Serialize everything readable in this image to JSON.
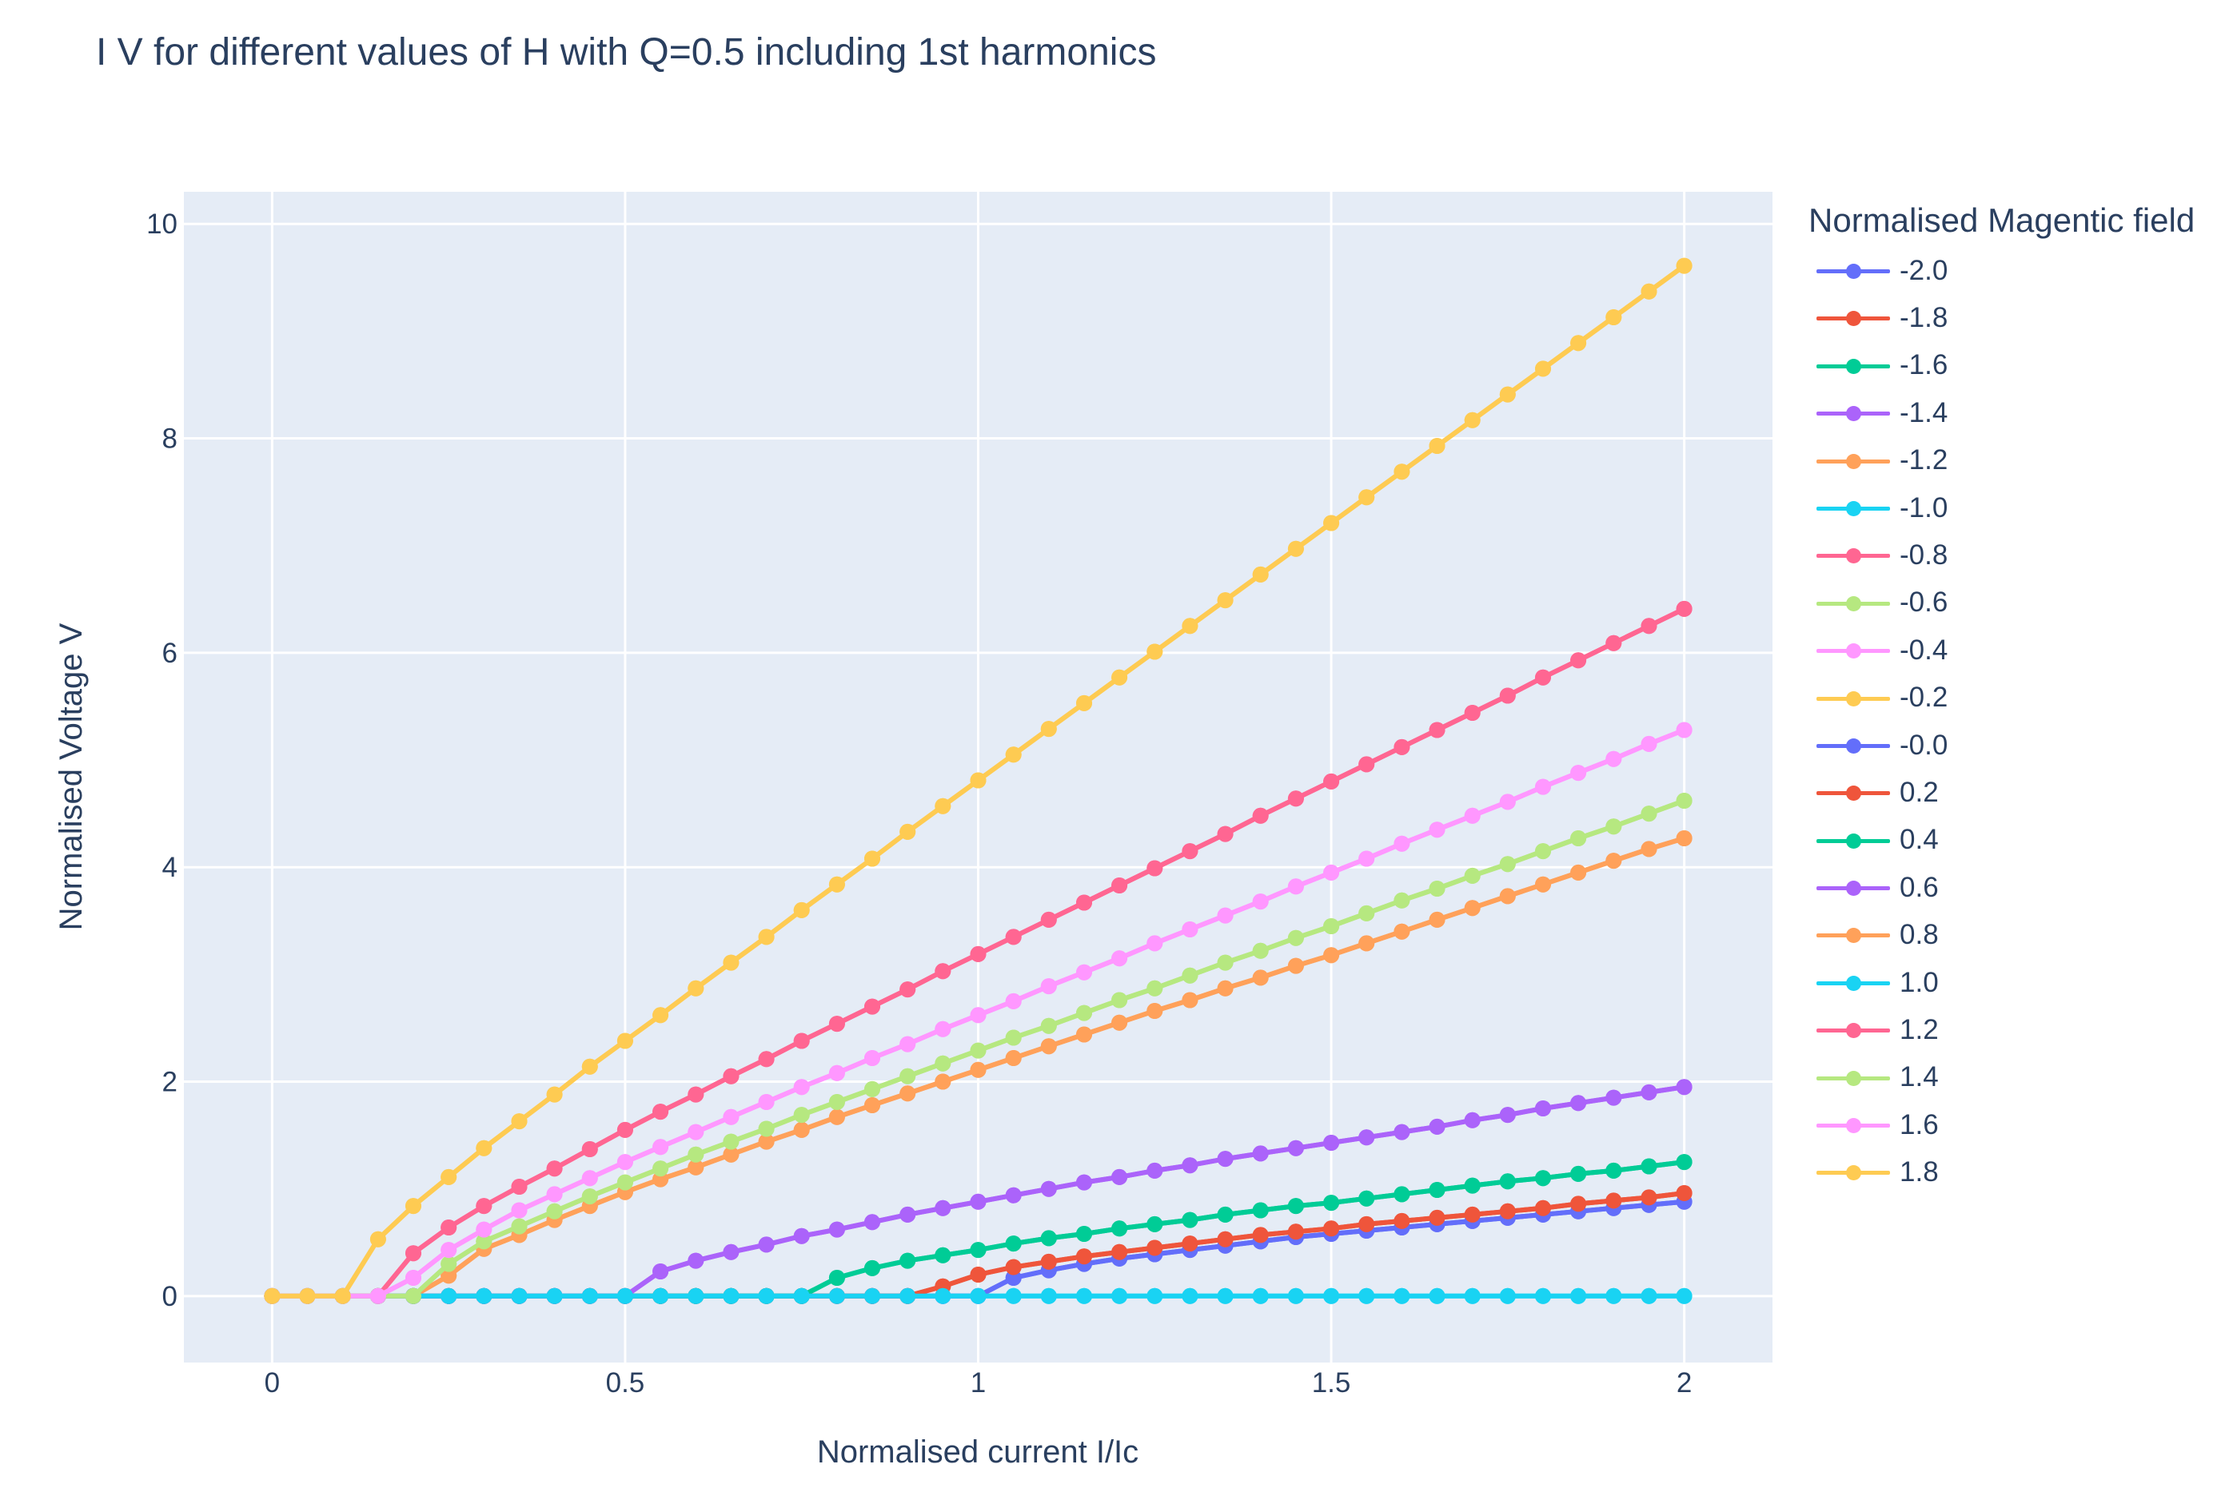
{
  "title": "I V for different values of H with Q=0.5 including 1st harmonics",
  "legend_title": "Normalised Magentic field",
  "chart_data": {
    "type": "line",
    "title": "I V for different values of H with Q=0.5 including 1st harmonics",
    "xlabel": "Normalised current I/Ic",
    "ylabel": "Normalised Voltage V",
    "xlim": [
      -0.125,
      2.125
    ],
    "ylim": [
      -0.62,
      10.3
    ],
    "xticks": [
      0,
      0.5,
      1,
      1.5,
      2
    ],
    "xtick_labels": [
      "0",
      "0.5",
      "1",
      "1.5",
      "2"
    ],
    "yticks": [
      0,
      2,
      4,
      6,
      8,
      10
    ],
    "ytick_labels": [
      "0",
      "2",
      "4",
      "6",
      "8",
      "10"
    ],
    "grid": true,
    "legend_position": "right",
    "x": [
      0,
      0.05,
      0.1,
      0.15,
      0.2,
      0.25,
      0.3,
      0.35,
      0.4,
      0.45,
      0.5,
      0.55,
      0.6,
      0.65,
      0.7,
      0.75,
      0.8,
      0.85,
      0.9,
      0.95,
      1,
      1.05,
      1.1,
      1.15,
      1.2,
      1.25,
      1.3,
      1.35,
      1.4,
      1.45,
      1.5,
      1.55,
      1.6,
      1.65,
      1.7,
      1.75,
      1.8,
      1.85,
      1.9,
      1.95,
      2
    ],
    "series": [
      {
        "name": "-2.0",
        "color": "#636efa",
        "values": [
          0,
          0,
          0,
          0,
          0,
          0,
          0,
          0,
          0,
          0,
          0,
          0,
          0,
          0,
          0,
          0,
          0,
          0,
          0,
          0,
          0,
          0.17,
          0.24,
          0.3,
          0.35,
          0.39,
          0.43,
          0.47,
          0.51,
          0.55,
          0.58,
          0.61,
          0.64,
          0.67,
          0.7,
          0.73,
          0.76,
          0.79,
          0.82,
          0.85,
          0.88
        ]
      },
      {
        "name": "-1.8",
        "color": "#ef553b",
        "values": [
          0,
          0,
          0,
          0,
          0,
          0,
          0,
          0,
          0,
          0,
          0,
          0,
          0,
          0,
          0,
          0,
          0,
          0,
          0,
          0.09,
          0.2,
          0.27,
          0.32,
          0.37,
          0.41,
          0.45,
          0.49,
          0.53,
          0.57,
          0.6,
          0.63,
          0.67,
          0.7,
          0.73,
          0.76,
          0.79,
          0.82,
          0.86,
          0.89,
          0.92,
          0.96
        ]
      },
      {
        "name": "-1.6",
        "color": "#00cc96",
        "values": [
          0,
          0,
          0,
          0,
          0,
          0,
          0,
          0,
          0,
          0,
          0,
          0,
          0,
          0,
          0,
          0,
          0.17,
          0.26,
          0.33,
          0.38,
          0.43,
          0.49,
          0.54,
          0.58,
          0.63,
          0.67,
          0.71,
          0.76,
          0.8,
          0.84,
          0.87,
          0.91,
          0.95,
          0.99,
          1.03,
          1.07,
          1.1,
          1.14,
          1.17,
          1.21,
          1.25
        ]
      },
      {
        "name": "-1.4",
        "color": "#ab63fa",
        "values": [
          0,
          0,
          0,
          0,
          0,
          0,
          0,
          0,
          0,
          0,
          0,
          0.23,
          0.33,
          0.41,
          0.48,
          0.56,
          0.62,
          0.69,
          0.76,
          0.82,
          0.88,
          0.94,
          1.0,
          1.06,
          1.11,
          1.17,
          1.22,
          1.28,
          1.33,
          1.38,
          1.43,
          1.48,
          1.53,
          1.58,
          1.64,
          1.69,
          1.75,
          1.8,
          1.85,
          1.9,
          1.95
        ]
      },
      {
        "name": "-1.2",
        "color": "#ffa15a",
        "values": [
          0,
          0,
          0,
          0,
          0,
          0.19,
          0.44,
          0.57,
          0.71,
          0.84,
          0.97,
          1.09,
          1.2,
          1.32,
          1.44,
          1.55,
          1.67,
          1.78,
          1.89,
          2.0,
          2.11,
          2.22,
          2.33,
          2.44,
          2.55,
          2.66,
          2.76,
          2.87,
          2.97,
          3.08,
          3.18,
          3.29,
          3.4,
          3.51,
          3.62,
          3.73,
          3.84,
          3.95,
          4.06,
          4.17,
          4.27
        ]
      },
      {
        "name": "-1.0",
        "color": "#19d3f3",
        "values": [
          0,
          0,
          0,
          0,
          0,
          0,
          0,
          0,
          0,
          0,
          0,
          0,
          0,
          0,
          0,
          0,
          0,
          0,
          0,
          0,
          0,
          0,
          0,
          0,
          0,
          0,
          0,
          0,
          0,
          0,
          0,
          0,
          0,
          0,
          0,
          0,
          0,
          0,
          0,
          0,
          0
        ]
      },
      {
        "name": "-0.8",
        "color": "#ff6692",
        "values": [
          0,
          0,
          0,
          0,
          0.4,
          0.64,
          0.84,
          1.02,
          1.19,
          1.37,
          1.55,
          1.72,
          1.88,
          2.05,
          2.21,
          2.38,
          2.54,
          2.7,
          2.86,
          3.03,
          3.19,
          3.35,
          3.51,
          3.67,
          3.83,
          3.99,
          4.15,
          4.31,
          4.48,
          4.64,
          4.8,
          4.96,
          5.12,
          5.28,
          5.44,
          5.6,
          5.77,
          5.93,
          6.09,
          6.25,
          6.41
        ]
      },
      {
        "name": "-0.6",
        "color": "#b6e880",
        "values": [
          0,
          0,
          0,
          0,
          0,
          0.3,
          0.51,
          0.65,
          0.79,
          0.93,
          1.06,
          1.19,
          1.32,
          1.44,
          1.56,
          1.69,
          1.81,
          1.93,
          2.05,
          2.17,
          2.29,
          2.41,
          2.52,
          2.64,
          2.76,
          2.87,
          2.99,
          3.11,
          3.22,
          3.34,
          3.45,
          3.57,
          3.69,
          3.8,
          3.92,
          4.03,
          4.15,
          4.27,
          4.38,
          4.5,
          4.62
        ]
      },
      {
        "name": "-0.4",
        "color": "#ff97ff",
        "values": [
          0,
          0,
          0,
          0,
          0.17,
          0.43,
          0.62,
          0.8,
          0.95,
          1.1,
          1.25,
          1.39,
          1.53,
          1.67,
          1.81,
          1.95,
          2.08,
          2.22,
          2.35,
          2.49,
          2.62,
          2.75,
          2.89,
          3.02,
          3.15,
          3.29,
          3.42,
          3.55,
          3.68,
          3.82,
          3.95,
          4.08,
          4.22,
          4.35,
          4.48,
          4.61,
          4.75,
          4.88,
          5.01,
          5.15,
          5.28
        ]
      },
      {
        "name": "-0.2",
        "color": "#fecb52",
        "values": [
          0,
          0,
          0,
          0.53,
          0.84,
          1.11,
          1.38,
          1.63,
          1.88,
          2.14,
          2.38,
          2.62,
          2.87,
          3.11,
          3.35,
          3.6,
          3.84,
          4.08,
          4.33,
          4.57,
          4.81,
          5.05,
          5.29,
          5.53,
          5.77,
          6.01,
          6.25,
          6.49,
          6.73,
          6.97,
          7.21,
          7.45,
          7.69,
          7.93,
          8.17,
          8.41,
          8.65,
          8.89,
          9.13,
          9.37,
          9.61
        ]
      },
      {
        "name": "-0.0",
        "color": "#636efa",
        "values": [
          0,
          0,
          0,
          0,
          0,
          0,
          0,
          0,
          0,
          0,
          0,
          0,
          0,
          0,
          0,
          0,
          0,
          0,
          0,
          0,
          0,
          0.17,
          0.24,
          0.3,
          0.35,
          0.39,
          0.43,
          0.47,
          0.51,
          0.55,
          0.58,
          0.61,
          0.64,
          0.67,
          0.7,
          0.73,
          0.76,
          0.79,
          0.82,
          0.85,
          0.88
        ]
      },
      {
        "name": "0.2",
        "color": "#ef553b",
        "values": [
          0,
          0,
          0,
          0,
          0,
          0,
          0,
          0,
          0,
          0,
          0,
          0,
          0,
          0,
          0,
          0,
          0,
          0,
          0,
          0.09,
          0.2,
          0.27,
          0.32,
          0.37,
          0.41,
          0.45,
          0.49,
          0.53,
          0.57,
          0.6,
          0.63,
          0.67,
          0.7,
          0.73,
          0.76,
          0.79,
          0.82,
          0.86,
          0.89,
          0.92,
          0.96
        ]
      },
      {
        "name": "0.4",
        "color": "#00cc96",
        "values": [
          0,
          0,
          0,
          0,
          0,
          0,
          0,
          0,
          0,
          0,
          0,
          0,
          0,
          0,
          0,
          0,
          0.17,
          0.26,
          0.33,
          0.38,
          0.43,
          0.49,
          0.54,
          0.58,
          0.63,
          0.67,
          0.71,
          0.76,
          0.8,
          0.84,
          0.87,
          0.91,
          0.95,
          0.99,
          1.03,
          1.07,
          1.1,
          1.14,
          1.17,
          1.21,
          1.25
        ]
      },
      {
        "name": "0.6",
        "color": "#ab63fa",
        "values": [
          0,
          0,
          0,
          0,
          0,
          0,
          0,
          0,
          0,
          0,
          0,
          0.23,
          0.33,
          0.41,
          0.48,
          0.56,
          0.62,
          0.69,
          0.76,
          0.82,
          0.88,
          0.94,
          1.0,
          1.06,
          1.11,
          1.17,
          1.22,
          1.28,
          1.33,
          1.38,
          1.43,
          1.48,
          1.53,
          1.58,
          1.64,
          1.69,
          1.75,
          1.8,
          1.85,
          1.9,
          1.95
        ]
      },
      {
        "name": "0.8",
        "color": "#ffa15a",
        "values": [
          0,
          0,
          0,
          0,
          0,
          0.19,
          0.44,
          0.57,
          0.71,
          0.84,
          0.97,
          1.09,
          1.2,
          1.32,
          1.44,
          1.55,
          1.67,
          1.78,
          1.89,
          2.0,
          2.11,
          2.22,
          2.33,
          2.44,
          2.55,
          2.66,
          2.76,
          2.87,
          2.97,
          3.08,
          3.18,
          3.29,
          3.4,
          3.51,
          3.62,
          3.73,
          3.84,
          3.95,
          4.06,
          4.17,
          4.27
        ]
      },
      {
        "name": "1.0",
        "color": "#19d3f3",
        "values": [
          0,
          0,
          0,
          0,
          0,
          0,
          0,
          0,
          0,
          0,
          0,
          0,
          0,
          0,
          0,
          0,
          0,
          0,
          0,
          0,
          0,
          0,
          0,
          0,
          0,
          0,
          0,
          0,
          0,
          0,
          0,
          0,
          0,
          0,
          0,
          0,
          0,
          0,
          0,
          0,
          0
        ]
      },
      {
        "name": "1.2",
        "color": "#ff6692",
        "values": [
          0,
          0,
          0,
          0,
          0.4,
          0.64,
          0.84,
          1.02,
          1.19,
          1.37,
          1.55,
          1.72,
          1.88,
          2.05,
          2.21,
          2.38,
          2.54,
          2.7,
          2.86,
          3.03,
          3.19,
          3.35,
          3.51,
          3.67,
          3.83,
          3.99,
          4.15,
          4.31,
          4.48,
          4.64,
          4.8,
          4.96,
          5.12,
          5.28,
          5.44,
          5.6,
          5.77,
          5.93,
          6.09,
          6.25,
          6.41
        ]
      },
      {
        "name": "1.4",
        "color": "#b6e880",
        "values": [
          0,
          0,
          0,
          0,
          0,
          0.3,
          0.51,
          0.65,
          0.79,
          0.93,
          1.06,
          1.19,
          1.32,
          1.44,
          1.56,
          1.69,
          1.81,
          1.93,
          2.05,
          2.17,
          2.29,
          2.41,
          2.52,
          2.64,
          2.76,
          2.87,
          2.99,
          3.11,
          3.22,
          3.34,
          3.45,
          3.57,
          3.69,
          3.8,
          3.92,
          4.03,
          4.15,
          4.27,
          4.38,
          4.5,
          4.62
        ]
      },
      {
        "name": "1.6",
        "color": "#ff97ff",
        "values": [
          0,
          0,
          0,
          0,
          0.17,
          0.43,
          0.62,
          0.8,
          0.95,
          1.1,
          1.25,
          1.39,
          1.53,
          1.67,
          1.81,
          1.95,
          2.08,
          2.22,
          2.35,
          2.49,
          2.62,
          2.75,
          2.89,
          3.02,
          3.15,
          3.29,
          3.42,
          3.55,
          3.68,
          3.82,
          3.95,
          4.08,
          4.22,
          4.35,
          4.48,
          4.61,
          4.75,
          4.88,
          5.01,
          5.15,
          5.28
        ]
      },
      {
        "name": "1.8",
        "color": "#fecb52",
        "values": [
          0,
          0,
          0,
          0.53,
          0.84,
          1.11,
          1.38,
          1.63,
          1.88,
          2.14,
          2.38,
          2.62,
          2.87,
          3.11,
          3.35,
          3.6,
          3.84,
          4.08,
          4.33,
          4.57,
          4.81,
          5.05,
          5.29,
          5.53,
          5.77,
          6.01,
          6.25,
          6.49,
          6.73,
          6.97,
          7.21,
          7.45,
          7.69,
          7.93,
          8.17,
          8.41,
          8.65,
          8.89,
          9.13,
          9.37,
          9.61
        ]
      }
    ]
  }
}
